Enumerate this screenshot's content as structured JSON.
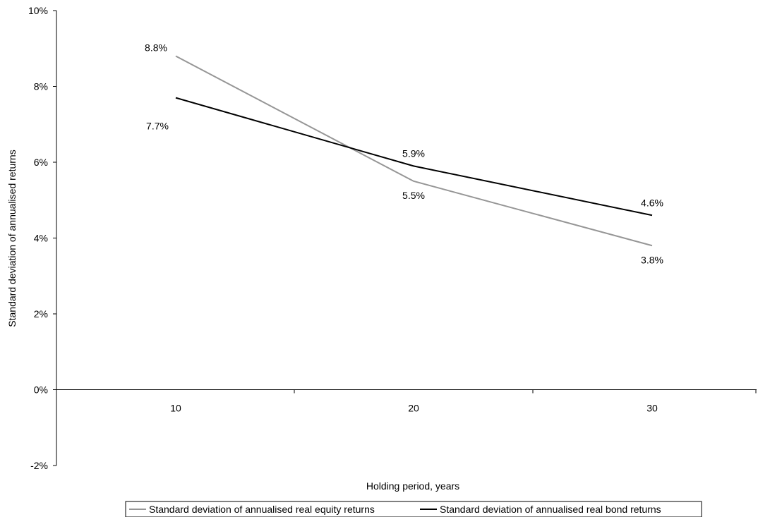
{
  "chart_data": {
    "type": "line",
    "x": [
      10,
      20,
      30
    ],
    "xlabel": "Holding period, years",
    "ylabel": "Standard deviation of annualised returns",
    "ylim": [
      -2,
      10
    ],
    "yticks": [
      -2,
      0,
      2,
      4,
      6,
      8,
      10
    ],
    "ytick_labels": [
      "-2%",
      "0%",
      "2%",
      "4%",
      "6%",
      "8%",
      "10%"
    ],
    "xtick_labels": [
      "10",
      "20",
      "30"
    ],
    "grid": false,
    "legend_position": "bottom",
    "series": [
      {
        "name": "Standard deviation of annualised real equity returns",
        "values": [
          8.8,
          5.5,
          3.8
        ],
        "labels": [
          "8.8%",
          "5.5%",
          "3.8%"
        ],
        "color": "#969696"
      },
      {
        "name": "Standard deviation of annualised real bond returns",
        "values": [
          7.7,
          5.9,
          4.6
        ],
        "labels": [
          "7.7%",
          "5.9%",
          "4.6%"
        ],
        "color": "#000000"
      }
    ]
  }
}
